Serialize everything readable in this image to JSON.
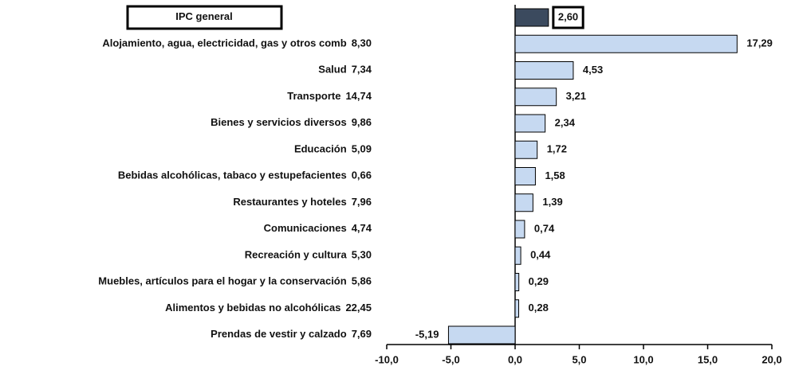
{
  "chart_data": {
    "type": "bar",
    "orientation": "horizontal",
    "categories": [
      "IPC general",
      "Alojamiento, agua, electricidad, gas y otros comb",
      "Salud",
      "Transporte",
      "Bienes y servicios diversos",
      "Educación",
      "Bebidas alcohólicas, tabaco y estupefacientes",
      "Restaurantes y hoteles",
      "Comunicaciones",
      "Recreación y cultura",
      "Muebles, artículos para el hogar y la conservación",
      "Alimentos y bebidas no alcohólicas",
      "Prendas de vestir y calzado"
    ],
    "weights": [
      null,
      "8,30",
      "7,34",
      "14,74",
      "9,86",
      "5,09",
      "0,66",
      "7,96",
      "4,74",
      "5,30",
      "5,86",
      "22,45",
      "7,69"
    ],
    "values": [
      2.6,
      17.29,
      4.53,
      3.21,
      2.34,
      1.72,
      1.58,
      1.39,
      0.74,
      0.44,
      0.29,
      0.28,
      -5.19
    ],
    "value_labels": [
      "2,60",
      "17,29",
      "4,53",
      "3,21",
      "2,34",
      "1,72",
      "1,58",
      "1,39",
      "0,74",
      "0,44",
      "0,29",
      "0,28",
      "-5,19"
    ],
    "bar_colors": [
      "#3b4a5e",
      "#c6d9f1",
      "#c6d9f1",
      "#c6d9f1",
      "#c6d9f1",
      "#c6d9f1",
      "#c6d9f1",
      "#c6d9f1",
      "#c6d9f1",
      "#c6d9f1",
      "#c6d9f1",
      "#c6d9f1",
      "#c6d9f1"
    ],
    "xlim": [
      -10,
      20
    ],
    "xticks": [
      {
        "value": -10,
        "label": "-10,0"
      },
      {
        "value": -5,
        "label": "-5,0"
      },
      {
        "value": 0,
        "label": "0,0"
      },
      {
        "value": 5,
        "label": "5,0"
      },
      {
        "value": 10,
        "label": "10,0"
      },
      {
        "value": 15,
        "label": "15,0"
      },
      {
        "value": 20,
        "label": "20,0"
      }
    ]
  }
}
